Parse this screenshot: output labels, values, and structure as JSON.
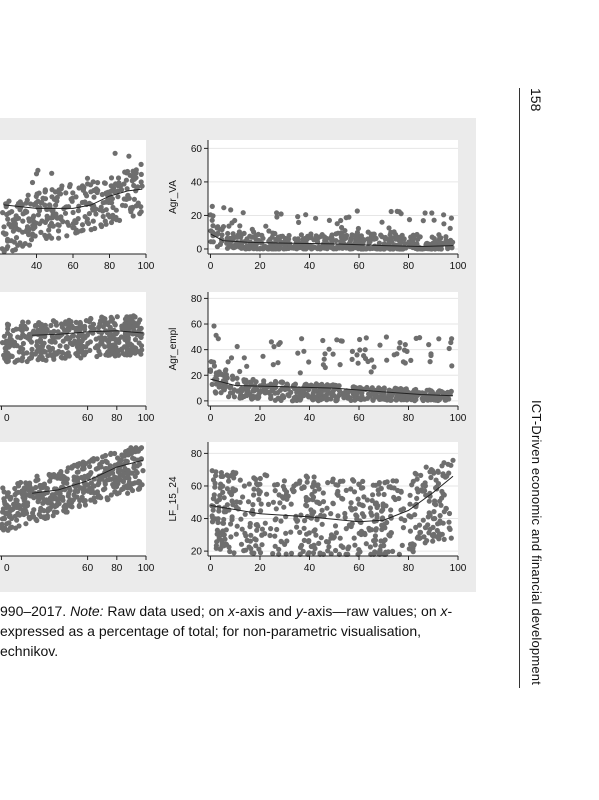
{
  "page": {
    "number": "158",
    "running_title": "ICT-Driven economic and financial development"
  },
  "caption": {
    "line1_pre": "990–2017. ",
    "line1_note": "Note:",
    "line1_post": " Raw data used; on ",
    "line1_x": "x",
    "line1_mid": "-axis and ",
    "line1_y": "y",
    "line1_end": "-axis—raw values; on ",
    "line1_x2": "x",
    "line1_dash": "-",
    "line2": " expressed as a percentage of total; for non-parametric visualisation,",
    "line3": "echnikov."
  },
  "chart_data": [
    {
      "id": "left-top",
      "type": "scatter",
      "ylabel": "",
      "x_ticks": [
        "40",
        "60",
        "80",
        "100"
      ],
      "y_ticks": [],
      "xlim": [
        20,
        100
      ],
      "ylim": [
        0,
        65
      ],
      "cloud": {
        "kind": "rising",
        "n": 320,
        "seed": 11,
        "lo": 0,
        "hi": 60
      },
      "trend": [
        [
          22,
          28
        ],
        [
          40,
          26
        ],
        [
          60,
          26
        ],
        [
          70,
          28
        ],
        [
          80,
          33
        ],
        [
          90,
          36
        ],
        [
          98,
          37
        ]
      ]
    },
    {
      "id": "right-top",
      "type": "scatter",
      "ylabel": "Agr_VA",
      "x_ticks": [
        "0",
        "20",
        "40",
        "60",
        "80",
        "100"
      ],
      "y_ticks": [
        "0",
        "20",
        "40",
        "60"
      ],
      "y_tick_vals": [
        0,
        20,
        40,
        60
      ],
      "xlim": [
        -1,
        100
      ],
      "ylim": [
        -3,
        65
      ],
      "cloud": {
        "kind": "decay",
        "n": 520,
        "seed": 23,
        "lo": 0,
        "hi": 57
      },
      "trend": [
        [
          0,
          9
        ],
        [
          5,
          5
        ],
        [
          15,
          4
        ],
        [
          30,
          3.5
        ],
        [
          50,
          3
        ],
        [
          70,
          2
        ],
        [
          85,
          1.5
        ],
        [
          98,
          2
        ]
      ]
    },
    {
      "id": "left-mid",
      "type": "scatter",
      "ylabel": "",
      "x_ticks": [
        "0",
        "60",
        "80",
        "100"
      ],
      "y_ticks": [],
      "xlim": [
        0,
        100
      ],
      "ylim": [
        0,
        100
      ],
      "cloud": {
        "kind": "band",
        "n": 420,
        "seed": 37,
        "lo": 35,
        "hi": 90
      },
      "trend": [
        [
          22,
          62
        ],
        [
          40,
          63
        ],
        [
          60,
          65
        ],
        [
          80,
          66
        ],
        [
          98,
          64
        ]
      ]
    },
    {
      "id": "right-mid",
      "type": "scatter",
      "ylabel": "Agr_empl",
      "x_ticks": [
        "0",
        "20",
        "40",
        "60",
        "80",
        "100"
      ],
      "y_ticks": [
        "0",
        "20",
        "40",
        "60",
        "80"
      ],
      "y_tick_vals": [
        0,
        20,
        40,
        60,
        80
      ],
      "xlim": [
        -1,
        100
      ],
      "ylim": [
        -4,
        85
      ],
      "cloud": {
        "kind": "decay2",
        "n": 560,
        "seed": 41,
        "lo": 0,
        "hi": 70
      },
      "trend": [
        [
          0,
          17
        ],
        [
          10,
          12
        ],
        [
          30,
          11
        ],
        [
          50,
          10
        ],
        [
          70,
          7
        ],
        [
          85,
          5
        ],
        [
          98,
          4
        ]
      ]
    },
    {
      "id": "left-bottom",
      "type": "scatter",
      "ylabel": "",
      "x_ticks": [
        "0",
        "60",
        "80",
        "100"
      ],
      "y_ticks": [],
      "xlim": [
        0,
        100
      ],
      "ylim": [
        0,
        100
      ],
      "cloud": {
        "kind": "rising2",
        "n": 440,
        "seed": 53,
        "lo": 15,
        "hi": 95
      },
      "trend": [
        [
          22,
          55
        ],
        [
          40,
          58
        ],
        [
          60,
          66
        ],
        [
          80,
          78
        ],
        [
          98,
          84
        ]
      ]
    },
    {
      "id": "right-bottom",
      "type": "scatter",
      "ylabel": "LF_15_24",
      "x_ticks": [
        "0",
        "20",
        "40",
        "60",
        "80",
        "100"
      ],
      "y_ticks": [
        "20",
        "40",
        "60",
        "80"
      ],
      "y_tick_vals": [
        20,
        40,
        60,
        80
      ],
      "xlim": [
        -1,
        100
      ],
      "ylim": [
        17,
        87
      ],
      "cloud": {
        "kind": "ushape",
        "n": 560,
        "seed": 67,
        "lo": 18,
        "hi": 83
      },
      "trend": [
        [
          0,
          48
        ],
        [
          20,
          43
        ],
        [
          40,
          41
        ],
        [
          60,
          38
        ],
        [
          70,
          39
        ],
        [
          80,
          45
        ],
        [
          90,
          56
        ],
        [
          98,
          66
        ]
      ]
    }
  ]
}
